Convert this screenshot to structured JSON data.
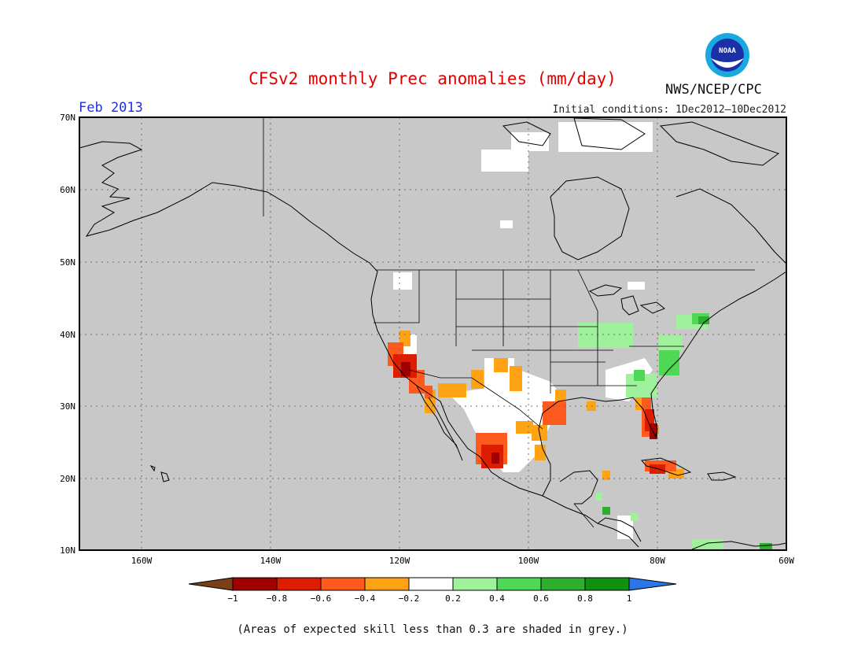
{
  "header": {
    "title": "CFSv2 monthly Prec anomalies (mm/day)",
    "month": "Feb 2013",
    "initial_conditions": "Initial conditions: 1Dec2012—10Dec2012",
    "agency": "NWS/NCEP/CPC",
    "logo_text": "NOAA"
  },
  "map": {
    "lat_labels": [
      "70N",
      "60N",
      "50N",
      "40N",
      "30N",
      "20N",
      "10N"
    ],
    "lon_labels": [
      "160W",
      "140W",
      "120W",
      "100W",
      "80W",
      "60W"
    ],
    "mask_color": "#c8c8c8",
    "ocean_color": "#c8c8c8"
  },
  "legend": {
    "tick_labels": [
      "−1",
      "−0.8",
      "−0.6",
      "−0.4",
      "−0.2",
      "0.2",
      "0.4",
      "0.6",
      "0.8",
      "1"
    ],
    "colors": [
      "#7a3f17",
      "#a00000",
      "#dd1c00",
      "#ff5a1e",
      "#ffa314",
      "#ffffff",
      "#9ff29b",
      "#4fd855",
      "#2dae2d",
      "#109110",
      "#2a75e8"
    ]
  },
  "footer": {
    "skill_note": "(Areas of expected skill less than 0.3 are shaded in grey.)"
  }
}
